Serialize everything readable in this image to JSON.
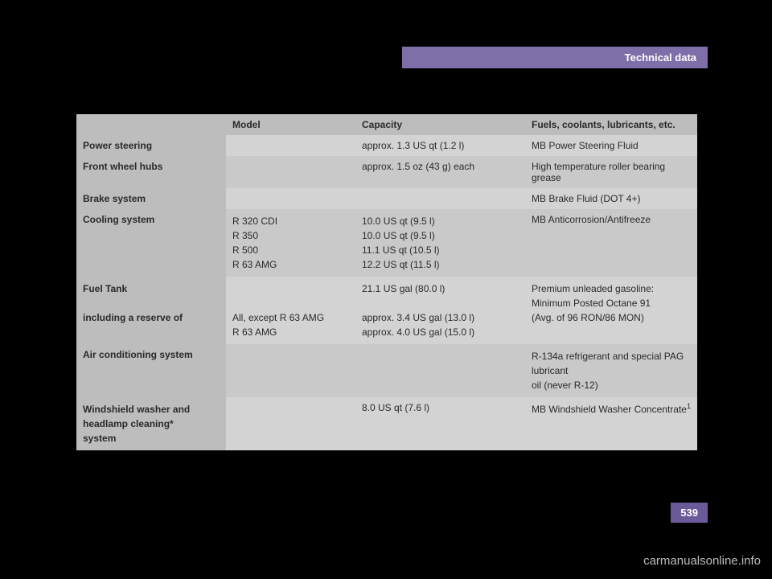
{
  "header": {
    "title": "Technical data"
  },
  "table": {
    "columns": [
      "",
      "Model",
      "Capacity",
      "Fuels, coolants, lubricants, etc."
    ],
    "rows": [
      {
        "label": "Power steering",
        "model": "",
        "capacity": "approx. 1.3 US qt (1.2 l)",
        "fuels": "MB Power Steering Fluid"
      },
      {
        "label": "Front wheel hubs",
        "model": "",
        "capacity": "approx. 1.5 oz (43 g) each",
        "fuels": "High temperature roller bearing grease"
      },
      {
        "label": "Brake system",
        "model": "",
        "capacity": "",
        "fuels": "MB Brake Fluid (DOT 4+)"
      },
      {
        "label": "Cooling system",
        "model_lines": [
          "R 320 CDI",
          "R 350",
          "R 500",
          "R 63 AMG"
        ],
        "capacity_lines": [
          "10.0 US qt (9.5 l)",
          "10.0 US qt (9.5 l)",
          "11.1 US qt (10.5 l)",
          "12.2 US qt (11.5 l)"
        ],
        "fuels": "MB Anticorrosion/Antifreeze"
      },
      {
        "label_lines": [
          "Fuel Tank",
          "",
          "including a reserve of"
        ],
        "model_lines": [
          "",
          "",
          "All, except R 63 AMG",
          "R 63 AMG"
        ],
        "capacity_lines": [
          "21.1 US gal (80.0 l)",
          "",
          "approx. 3.4 US gal (13.0 l)",
          "approx. 4.0 US gal (15.0 l)"
        ],
        "fuels_lines": [
          "Premium unleaded gasoline:",
          "Minimum Posted Octane 91",
          "(Avg. of 96 RON/86 MON)"
        ]
      },
      {
        "label": "Air conditioning system",
        "model": "",
        "capacity": "",
        "fuels_lines": [
          "R-134a refrigerant and special PAG lubricant",
          "oil (never R-12)"
        ]
      },
      {
        "label_lines": [
          "Windshield washer and",
          "headlamp cleaning*",
          "system"
        ],
        "model": "",
        "capacity": "8.0 US qt (7.6 l)",
        "fuels": "MB Windshield Washer Concentrate",
        "footnote": "1"
      }
    ]
  },
  "page_number": "539",
  "watermark": "carmanualsonline.info"
}
